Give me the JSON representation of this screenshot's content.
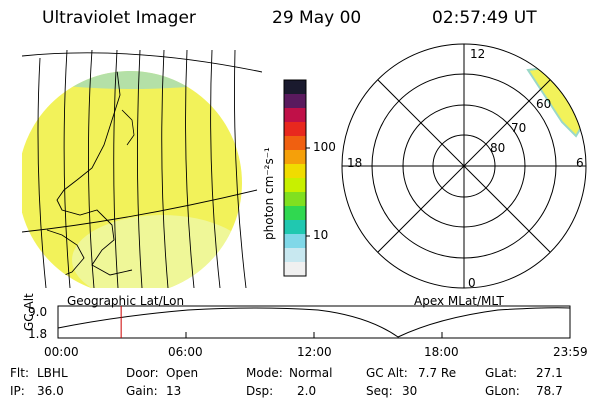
{
  "header": {
    "instrument": "Ultraviolet Imager",
    "date": "29 May 00",
    "time": "02:57:49 UT"
  },
  "colorbar": {
    "unit_label": "photon cm⁻²s⁻¹",
    "tick_100": "100",
    "tick_10": "10",
    "colors": [
      "#1a1a2e",
      "#5a1a5e",
      "#c01048",
      "#e8281e",
      "#f06010",
      "#f5a00a",
      "#f0dc00",
      "#c8f000",
      "#80e020",
      "#30d850",
      "#20c8b0",
      "#80d8e8",
      "#c8e8f0",
      "#f0f0f0"
    ]
  },
  "polar_plot": {
    "mlt_top": "12",
    "mlt_left": "18",
    "mlt_right": "6",
    "mlt_bottom": "0",
    "lat_60": "60",
    "lat_70": "70",
    "lat_80": "80"
  },
  "altitude_panel": {
    "axis_title": "GC Alt",
    "tick_high": "9.0",
    "tick_low": "1.8",
    "left_title": "Geographic Lat/Lon",
    "right_title": "Apex MLat/MLT",
    "time_ticks": [
      "00:00",
      "06:00",
      "12:00",
      "18:00",
      "23:59"
    ],
    "marker_time_hours": 2.96
  },
  "info": {
    "filter_label": "Flt:",
    "filter_value": "LBHL",
    "ip_label": "IP:",
    "ip_value": "36.0",
    "door_label": "Door:",
    "door_value": "Open",
    "gain_label": "Gain:",
    "gain_value": "13",
    "mode_label": "Mode:",
    "mode_value": "Normal",
    "dsp_label": "Dsp:",
    "dsp_value": "2.0",
    "gcalt_label": "GC Alt:",
    "gcalt_value": "7.7 Re",
    "seq_label": "Seq:",
    "seq_value": "30",
    "glat_label": "GLat:",
    "glat_value": "27.1",
    "glon_label": "GLon:",
    "glon_value": "78.7"
  },
  "colors": {
    "disk_main": "#f2f25a",
    "disk_light": "#e8f5a0",
    "limb": "#9ad8c8",
    "marker": "#cc0000"
  }
}
